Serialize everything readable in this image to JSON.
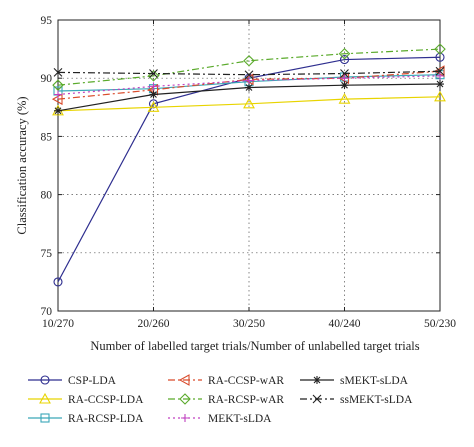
{
  "chart_data": {
    "type": "line",
    "title": "",
    "xlabel": "Number of labelled target trials/Number of unlabelled target trials",
    "ylabel": "Classification accuracy (%)",
    "categories": [
      "10/270",
      "20/260",
      "30/250",
      "40/240",
      "50/230"
    ],
    "ylim": [
      70,
      95
    ],
    "yticks": [
      70,
      75,
      80,
      85,
      90,
      95
    ],
    "grid": true,
    "legend_position": "bottom",
    "series": [
      {
        "name": "CSP-LDA",
        "values": [
          72.5,
          87.8,
          90.0,
          91.6,
          91.8
        ],
        "color": "#2e2e8f",
        "dash": "",
        "marker": "circle"
      },
      {
        "name": "RA-CCSP-LDA",
        "values": [
          87.2,
          87.5,
          87.8,
          88.2,
          88.4
        ],
        "color": "#e8d400",
        "dash": "",
        "marker": "triangle-up"
      },
      {
        "name": "RA-RCSP-LDA",
        "values": [
          88.9,
          89.1,
          89.7,
          90.1,
          90.3
        ],
        "color": "#3aa7b8",
        "dash": "",
        "marker": "square"
      },
      {
        "name": "RA-CCSP-wAR",
        "values": [
          88.2,
          89.0,
          89.9,
          90.0,
          90.6
        ],
        "color": "#d94b2b",
        "dash": "7,3,2,3",
        "marker": "triangle-left"
      },
      {
        "name": "RA-RCSP-wAR",
        "values": [
          89.4,
          90.2,
          91.5,
          92.1,
          92.5
        ],
        "color": "#5aaa2b",
        "dash": "7,3,2,3",
        "marker": "diamond"
      },
      {
        "name": "MEKT-sLDA",
        "values": [
          88.6,
          89.3,
          89.8,
          90.0,
          90.2
        ],
        "color": "#c040c0",
        "dash": "2,3",
        "marker": "plus"
      },
      {
        "name": "sMEKT-sLDA",
        "values": [
          87.2,
          88.6,
          89.2,
          89.4,
          89.5
        ],
        "color": "#222222",
        "dash": "",
        "marker": "star"
      },
      {
        "name": "ssMEKT-sLDA",
        "values": [
          90.5,
          90.4,
          90.3,
          90.4,
          90.6
        ],
        "color": "#222222",
        "dash": "7,3,2,3",
        "marker": "x"
      }
    ]
  }
}
